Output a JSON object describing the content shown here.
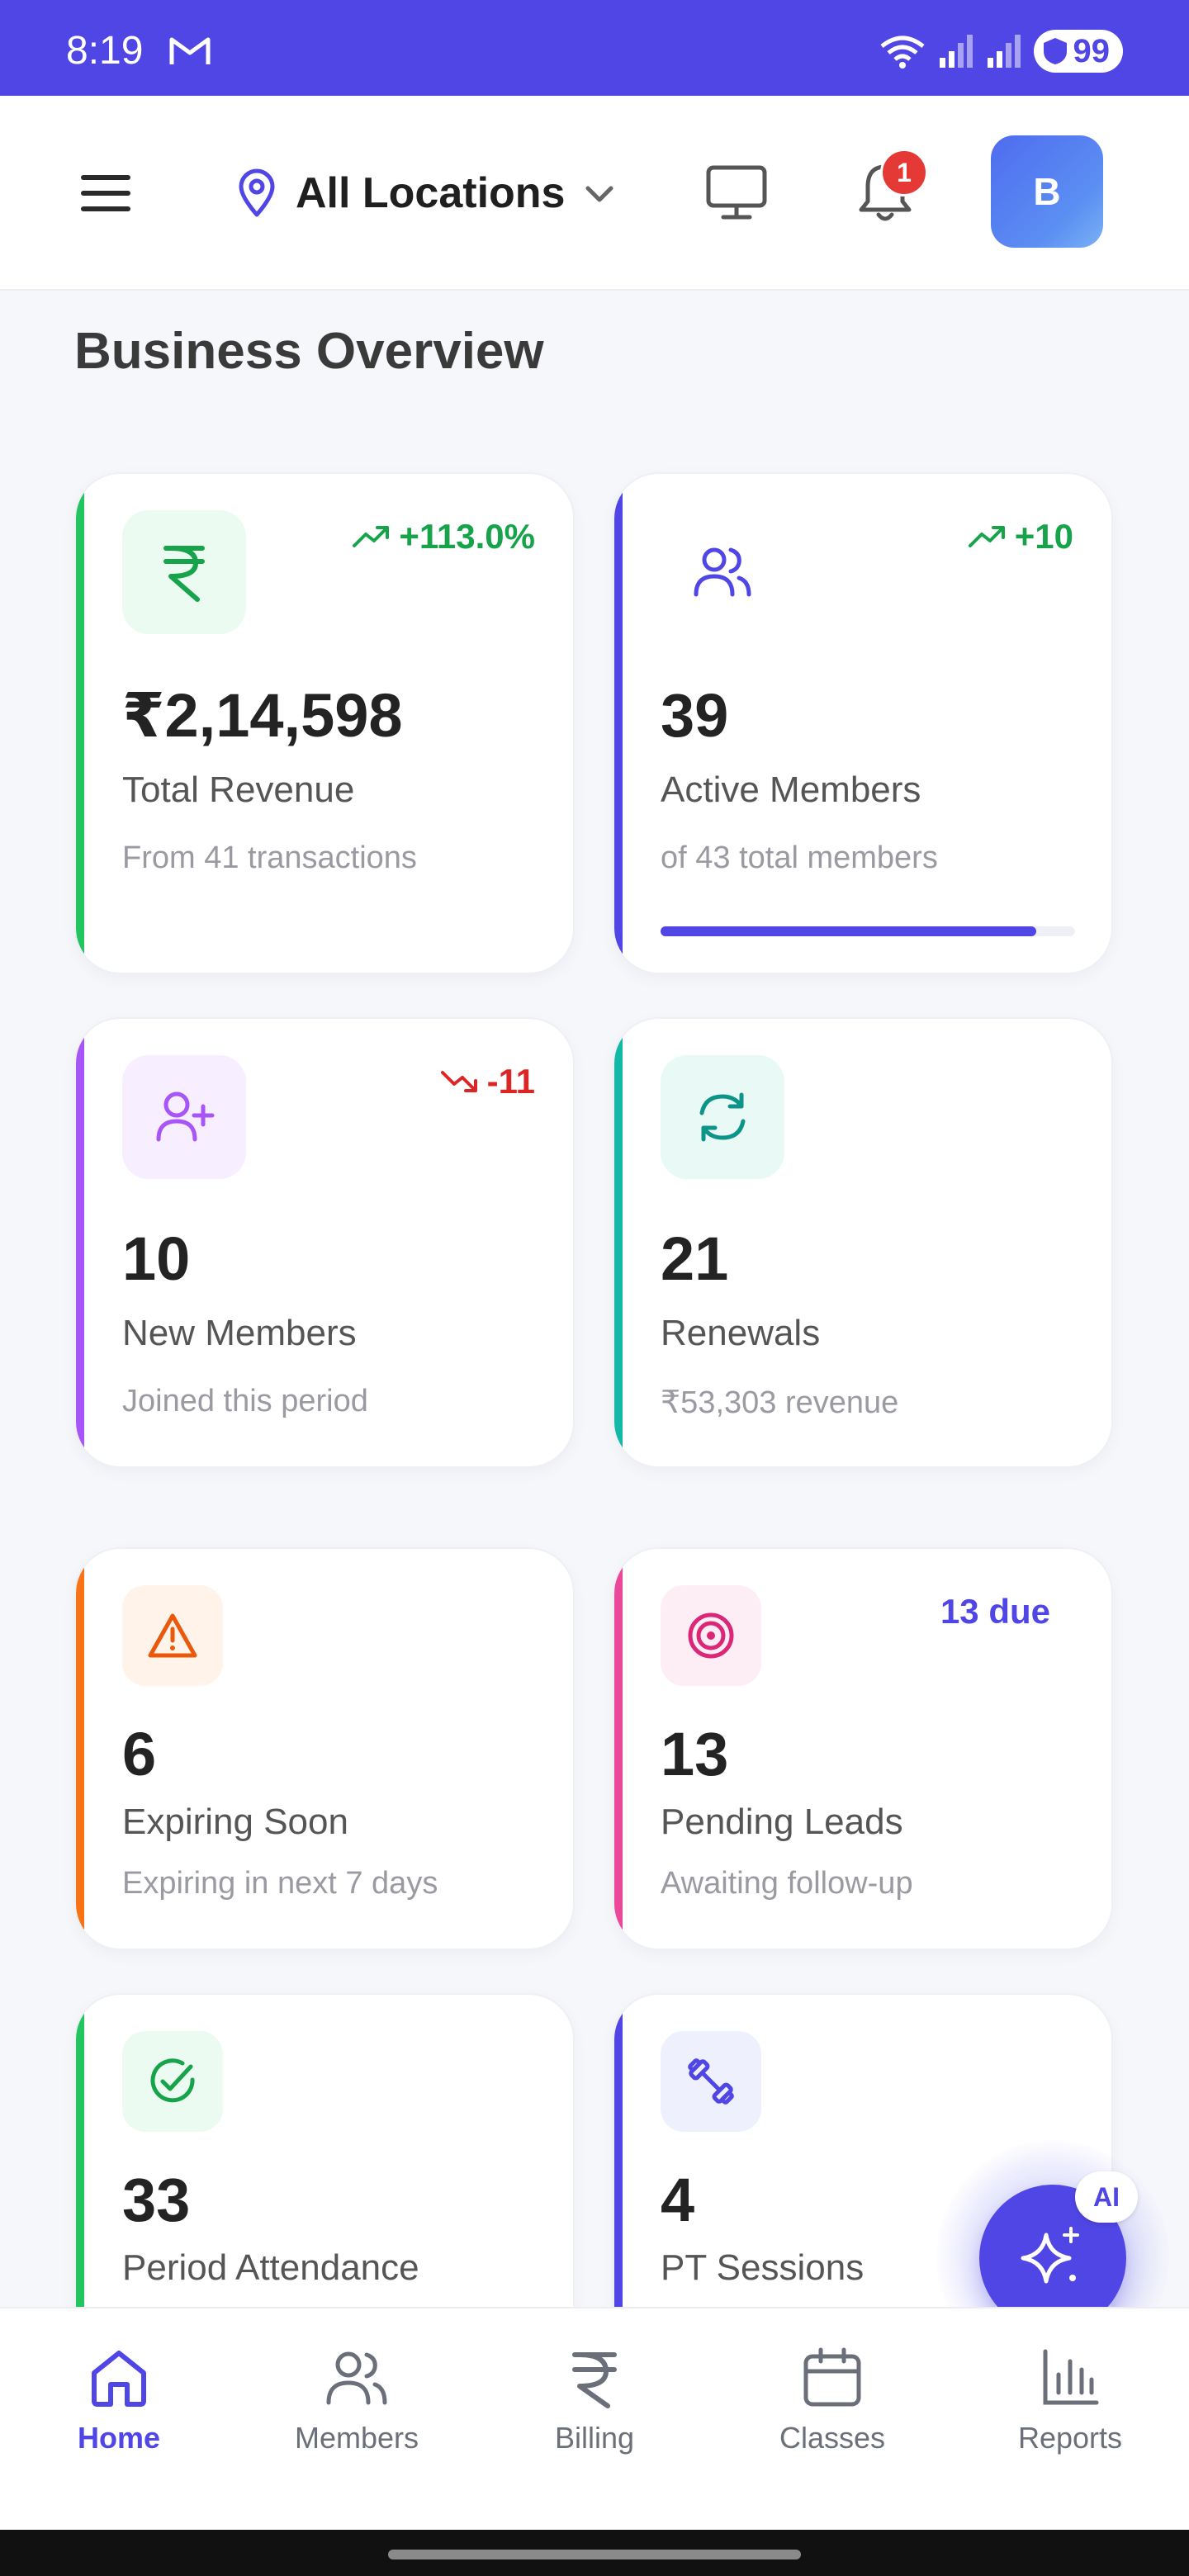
{
  "status_bar": {
    "time": "8:19",
    "battery": "99"
  },
  "header": {
    "location": "All Locations",
    "notification_count": "1",
    "avatar_initial": "B"
  },
  "page_title": "Business Overview",
  "cards": {
    "revenue": {
      "value": "₹2,14,598",
      "label": "Total Revenue",
      "sub": "From 41 transactions",
      "trend": "+113.0%",
      "accent": "#22c55e"
    },
    "active": {
      "value": "39",
      "label": "Active Members",
      "sub": "of 43 total members",
      "trend": "+10",
      "progress": 0.907,
      "accent": "#4f46e5"
    },
    "new_members": {
      "value": "10",
      "label": "New Members",
      "sub": "Joined this period",
      "trend": "-11",
      "accent": "#a855f7"
    },
    "renewals": {
      "value": "21",
      "label": "Renewals",
      "sub": "₹53,303 revenue",
      "accent": "#14b8a6"
    },
    "expiring": {
      "value": "6",
      "label": "Expiring Soon",
      "sub": "Expiring in next 7 days",
      "accent": "#f97316"
    },
    "leads": {
      "value": "13",
      "label": "Pending Leads",
      "sub": "Awaiting follow-up",
      "badge": "13 due",
      "accent": "#ec4899"
    },
    "attendance": {
      "value": "33",
      "label": "Period Attendance",
      "accent": "#22c55e"
    },
    "pt": {
      "value": "4",
      "label": "PT Sessions",
      "accent": "#4f46e5"
    }
  },
  "fab": {
    "badge": "AI"
  },
  "nav": {
    "home": "Home",
    "members": "Members",
    "billing": "Billing",
    "classes": "Classes",
    "reports": "Reports"
  },
  "colors": {
    "primary": "#4f46e5",
    "trend_up": "#16a34a",
    "trend_down": "#dc2626"
  }
}
